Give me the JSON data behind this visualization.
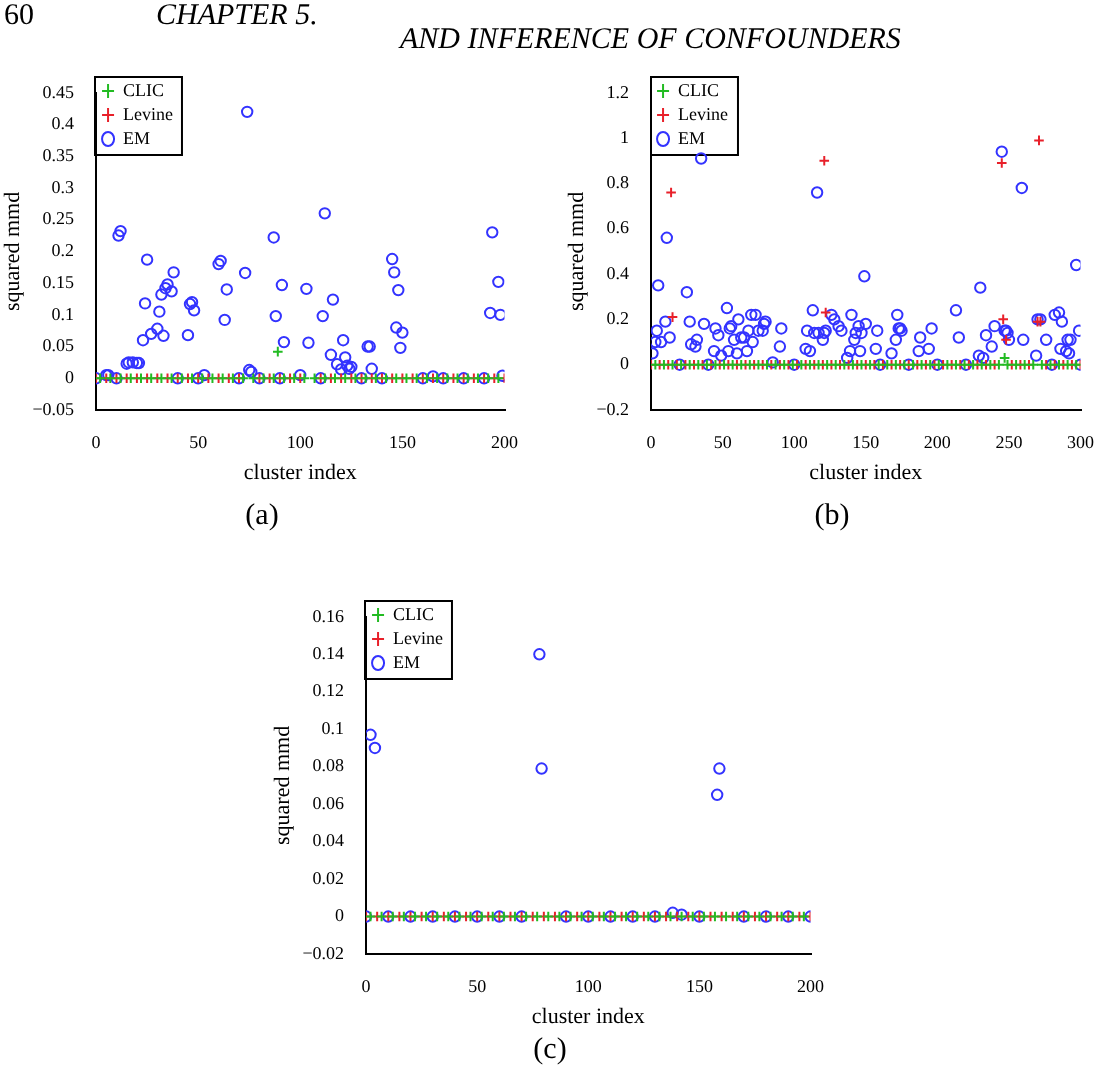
{
  "chart_data": [
    {
      "type": "scatter",
      "xlabel": "cluster index",
      "ylabel": "squared mmd",
      "annotations": [
        "60",
        "CHAPTER 5.",
        "AND INFERENCE OF CONFOUNDERS",
        "(a)"
      ],
      "legend": "top left",
      "xlim": [
        0,
        200
      ],
      "xticks": [
        0,
        50,
        100,
        150,
        200
      ],
      "ylim": [
        -0.05,
        0.45
      ],
      "yticks": [
        {
          "value": -0.05,
          "label": "−0.05"
        },
        0,
        0.05,
        0.1,
        0.15,
        0.2,
        0.25,
        0.3,
        0.35,
        0.4,
        0.45
      ],
      "series": [
        {
          "name": "EM",
          "color": "#3333ff",
          "marker": "circle",
          "x": [
            0,
            5,
            6,
            10,
            11,
            12,
            15,
            16,
            18,
            20,
            21,
            23,
            24,
            25,
            27,
            30,
            31,
            32,
            33,
            34,
            35,
            37,
            38,
            40,
            45,
            46,
            47,
            48,
            50,
            53,
            60,
            61,
            63,
            64,
            70,
            73,
            74,
            75,
            76,
            80,
            87,
            88,
            90,
            91,
            92,
            100,
            103,
            104,
            110,
            111,
            112,
            115,
            116,
            118,
            120,
            121,
            122,
            123,
            124,
            125,
            130,
            133,
            134,
            135,
            140,
            145,
            146,
            147,
            148,
            149,
            150,
            160,
            165,
            170,
            180,
            190,
            193,
            194,
            197,
            198,
            199
          ],
          "values": [
            0,
            0.005,
            0.005,
            0,
            0.225,
            0.232,
            0.023,
            0.025,
            0.025,
            0.024,
            0.024,
            0.06,
            0.118,
            0.187,
            0.07,
            0.078,
            0.105,
            0.132,
            0.067,
            0.142,
            0.148,
            0.137,
            0.167,
            0,
            0.068,
            0.117,
            0.12,
            0.107,
            0,
            0.005,
            0.18,
            0.185,
            0.092,
            0.14,
            0,
            0.166,
            0.42,
            0.013,
            0.01,
            0,
            0.222,
            0.098,
            0,
            0.147,
            0.057,
            0.005,
            0.141,
            0.056,
            0,
            0.098,
            0.26,
            0.037,
            0.124,
            0.022,
            0.014,
            0.06,
            0.033,
            0.02,
            0.015,
            0.018,
            0,
            0.05,
            0.05,
            0.015,
            0,
            0.188,
            0.167,
            0.08,
            0.139,
            0.048,
            0.072,
            0,
            0.003,
            0,
            0,
            0,
            0.103,
            0.23,
            0.152,
            0.1,
            0.004
          ]
        },
        {
          "name": "Levine",
          "color": "#e8202a",
          "marker": "cross",
          "x": [
            0,
            5,
            10,
            15,
            20,
            25,
            30,
            35,
            40,
            45,
            50,
            55,
            60,
            65,
            70,
            80,
            85,
            90,
            95,
            100,
            110,
            115,
            120,
            125,
            130,
            135,
            140,
            145,
            150,
            155,
            160,
            165,
            170,
            175,
            180,
            185,
            190,
            195,
            200
          ],
          "values": [
            0,
            0,
            0,
            0,
            0,
            0,
            0,
            0,
            0,
            0,
            0,
            0,
            0,
            0,
            0,
            0,
            0,
            0,
            0,
            0,
            0,
            0,
            0,
            0,
            0,
            0,
            0,
            0,
            0,
            0,
            0,
            0,
            0,
            0,
            0,
            0,
            0,
            0,
            0
          ]
        },
        {
          "name": "CLIC",
          "color": "#22bb22",
          "marker": "cross",
          "x": [
            2,
            7,
            12,
            17,
            22,
            27,
            32,
            37,
            42,
            47,
            52,
            57,
            62,
            67,
            72,
            77,
            82,
            87,
            89,
            92,
            97,
            102,
            107,
            112,
            117,
            122,
            127,
            132,
            137,
            142,
            147,
            152,
            157,
            162,
            167,
            172,
            177,
            182,
            187,
            192,
            197
          ],
          "values": [
            0,
            0,
            0,
            0,
            0,
            0,
            0,
            0,
            0,
            0,
            0,
            0,
            0,
            0,
            0,
            0,
            0,
            0,
            0.042,
            0,
            0,
            0,
            0,
            0,
            0,
            0,
            0,
            0,
            0,
            0,
            0,
            0,
            0,
            0,
            0,
            0,
            0,
            0,
            0,
            0,
            0
          ]
        }
      ]
    },
    {
      "type": "scatter",
      "xlabel": "cluster index",
      "ylabel": "squared mmd",
      "annotations": [
        "(b)"
      ],
      "legend": "top left",
      "xlim": [
        0,
        300
      ],
      "xticks": [
        0,
        50,
        100,
        150,
        200,
        250,
        300
      ],
      "ylim": [
        -0.2,
        1.2
      ],
      "yticks": [
        {
          "value": -0.2,
          "label": "−0.2"
        },
        0,
        0.2,
        0.4,
        0.6,
        0.8,
        1,
        1.2
      ],
      "series": [
        {
          "name": "EM",
          "color": "#3333ff",
          "marker": "circle",
          "x": [
            1,
            3,
            4,
            5,
            7,
            10,
            11,
            13,
            20,
            25,
            27,
            28,
            31,
            32,
            35,
            37,
            40,
            44,
            45,
            47,
            49,
            53,
            54,
            55,
            56,
            58,
            60,
            61,
            63,
            65,
            67,
            68,
            70,
            71,
            73,
            75,
            78,
            79,
            80,
            85,
            90,
            91,
            100,
            108,
            109,
            111,
            113,
            114,
            116,
            117,
            120,
            121,
            122,
            126,
            128,
            131,
            133,
            137,
            139,
            140,
            142,
            143,
            145,
            146,
            147,
            149,
            150,
            157,
            158,
            160,
            168,
            171,
            172,
            173,
            174,
            175,
            180,
            187,
            188,
            194,
            196,
            200,
            213,
            215,
            220,
            229,
            230,
            232,
            234,
            238,
            240,
            245,
            247,
            248,
            249,
            250,
            259,
            260,
            269,
            270,
            272,
            276,
            280,
            282,
            285,
            286,
            287,
            290,
            291,
            292,
            293,
            297,
            299,
            300
          ],
          "values": [
            0.05,
            0.1,
            0.15,
            0.35,
            0.1,
            0.19,
            0.56,
            0.12,
            0,
            0.32,
            0.19,
            0.09,
            0.08,
            0.11,
            0.91,
            0.18,
            0,
            0.06,
            0.16,
            0.13,
            0.04,
            0.25,
            0.06,
            0.16,
            0.17,
            0.11,
            0.05,
            0.2,
            0.12,
            0.12,
            0.06,
            0.15,
            0.22,
            0.1,
            0.22,
            0.15,
            0.15,
            0.18,
            0.19,
            0.01,
            0.08,
            0.16,
            0,
            0.07,
            0.15,
            0.06,
            0.24,
            0.14,
            0.76,
            0.14,
            0.11,
            0.14,
            0.15,
            0.22,
            0.2,
            0.17,
            0.15,
            0.03,
            0.06,
            0.22,
            0.11,
            0.14,
            0.17,
            0.06,
            0.14,
            0.39,
            0.18,
            0.07,
            0.15,
            0,
            0.05,
            0.11,
            0.22,
            0.16,
            0.16,
            0.15,
            0,
            0.06,
            0.12,
            0.07,
            0.16,
            0,
            0.24,
            0.12,
            0,
            0.04,
            0.34,
            0.03,
            0.13,
            0.08,
            0.17,
            0.94,
            0.15,
            0.15,
            0.14,
            0.11,
            0.78,
            0.11,
            0.04,
            0.2,
            0.2,
            0.11,
            0,
            0.22,
            0.23,
            0.07,
            0.19,
            0.06,
            0.11,
            0.05,
            0.11,
            0.44,
            0.15,
            0
          ]
        },
        {
          "name": "Levine",
          "color": "#e8202a",
          "marker": "cross",
          "x": [
            0,
            6,
            12,
            14,
            15,
            18,
            24,
            30,
            36,
            42,
            48,
            54,
            60,
            66,
            72,
            78,
            84,
            90,
            96,
            102,
            108,
            114,
            120,
            121,
            122,
            126,
            132,
            138,
            144,
            150,
            156,
            162,
            168,
            174,
            180,
            186,
            192,
            198,
            204,
            210,
            216,
            222,
            228,
            234,
            240,
            245,
            246,
            248,
            252,
            258,
            264,
            270,
            271,
            272,
            276,
            282,
            288,
            294,
            300
          ],
          "values": [
            0,
            0,
            0,
            0.76,
            0.21,
            0,
            0,
            0,
            0,
            0,
            0,
            0,
            0,
            0,
            0,
            0,
            0,
            0,
            0,
            0,
            0,
            0,
            0,
            0.9,
            0.23,
            0,
            0,
            0,
            0,
            0,
            0,
            0,
            0,
            0,
            0,
            0,
            0,
            0,
            0,
            0,
            0,
            0,
            0,
            0,
            0,
            0.89,
            0.2,
            0.11,
            0,
            0,
            0,
            0.19,
            0.99,
            0.19,
            0,
            0,
            0,
            0,
            0
          ]
        },
        {
          "name": "CLIC",
          "color": "#22bb22",
          "marker": "cross",
          "x": [
            3,
            9,
            15,
            21,
            27,
            33,
            39,
            45,
            51,
            57,
            63,
            69,
            75,
            81,
            87,
            93,
            99,
            105,
            111,
            117,
            123,
            129,
            135,
            141,
            147,
            153,
            159,
            165,
            171,
            177,
            183,
            189,
            195,
            201,
            207,
            213,
            219,
            225,
            231,
            237,
            243,
            247,
            249,
            255,
            261,
            267,
            273,
            279,
            285,
            291,
            297
          ],
          "values": [
            0,
            0,
            0,
            0,
            0,
            0,
            0,
            0,
            0,
            0,
            0,
            0,
            0,
            0,
            0,
            0,
            0,
            0,
            0,
            0,
            0,
            0,
            0,
            0,
            0,
            0,
            0,
            0,
            0,
            0,
            0,
            0,
            0,
            0,
            0,
            0,
            0,
            0,
            0,
            0,
            0,
            0.03,
            0,
            0,
            0,
            0,
            0,
            0,
            0,
            0,
            0
          ]
        }
      ]
    },
    {
      "type": "scatter",
      "xlabel": "cluster index",
      "ylabel": "squared mmd",
      "annotations": [
        "(c)"
      ],
      "legend": "top left",
      "xlim": [
        0,
        200
      ],
      "xticks": [
        0,
        50,
        100,
        150,
        200
      ],
      "ylim": [
        -0.02,
        0.16
      ],
      "yticks": [
        {
          "value": -0.02,
          "label": "−0.02"
        },
        0,
        0.02,
        0.04,
        0.06,
        0.08,
        0.1,
        0.12,
        0.14,
        0.16
      ],
      "series": [
        {
          "name": "EM",
          "color": "#3333ff",
          "marker": "circle",
          "x": [
            0,
            2,
            4,
            10,
            20,
            30,
            40,
            50,
            60,
            70,
            78,
            79,
            90,
            100,
            110,
            120,
            130,
            138,
            142,
            150,
            158,
            159,
            170,
            180,
            190,
            200
          ],
          "values": [
            0,
            0.097,
            0.09,
            0,
            0,
            0,
            0,
            0,
            0,
            0,
            0.14,
            0.079,
            0,
            0,
            0,
            0,
            0,
            0.002,
            0.001,
            0,
            0.065,
            0.079,
            0,
            0,
            0,
            0
          ]
        },
        {
          "name": "Levine",
          "color": "#e8202a",
          "marker": "cross",
          "x": [
            0,
            5,
            10,
            15,
            20,
            25,
            30,
            35,
            40,
            45,
            50,
            55,
            60,
            65,
            70,
            75,
            80,
            85,
            90,
            95,
            100,
            105,
            110,
            115,
            120,
            125,
            130,
            135,
            140,
            145,
            150,
            155,
            160,
            165,
            170,
            175,
            180,
            185,
            190,
            195,
            200
          ],
          "values": [
            0,
            0,
            0,
            0,
            0,
            0,
            0,
            0,
            0,
            0,
            0,
            0,
            0,
            0,
            0,
            0,
            0,
            0,
            0,
            0,
            0,
            0,
            0,
            0,
            0,
            0,
            0,
            0,
            0,
            0,
            0,
            0,
            0,
            0,
            0,
            0,
            0,
            0,
            0,
            0,
            0
          ]
        },
        {
          "name": "CLIC",
          "color": "#22bb22",
          "marker": "cross",
          "x": [
            2,
            7,
            12,
            17,
            22,
            27,
            32,
            37,
            42,
            47,
            52,
            57,
            62,
            67,
            72,
            77,
            82,
            87,
            92,
            97,
            102,
            107,
            112,
            117,
            122,
            127,
            132,
            137,
            142,
            147,
            152,
            157,
            162,
            167,
            172,
            177,
            182,
            187,
            192,
            197
          ],
          "values": [
            0,
            0,
            0,
            0,
            0,
            0,
            0,
            0,
            0,
            0,
            0,
            0,
            0,
            0,
            0,
            0,
            0,
            0,
            0,
            0,
            0,
            0,
            0,
            0,
            0,
            0,
            0,
            0,
            0,
            0,
            0,
            0,
            0,
            0,
            0,
            0,
            0,
            0,
            0,
            0
          ]
        }
      ]
    }
  ]
}
